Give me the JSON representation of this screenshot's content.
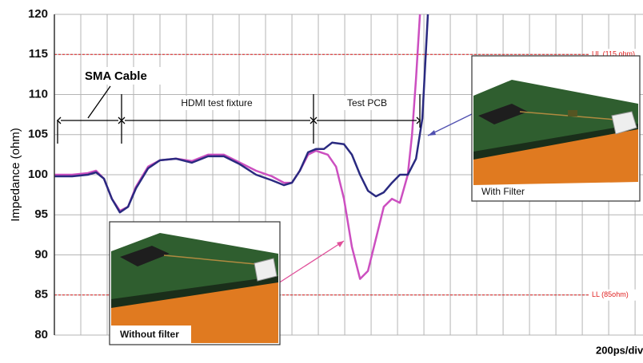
{
  "chart_data": {
    "type": "line",
    "y_label": "Impedance (ohm)",
    "x_label": "200ps/div",
    "xlim": [
      0,
      22.3
    ],
    "xticks": [
      0,
      1,
      2,
      3,
      4,
      5,
      6,
      7,
      8,
      9,
      10,
      11,
      12,
      13,
      14,
      15,
      16,
      17,
      18,
      19,
      20,
      21,
      22
    ],
    "ylim": [
      80,
      120
    ],
    "yticks": [
      80,
      85,
      90,
      95,
      100,
      105,
      110,
      115,
      120
    ],
    "grid": true,
    "limit_lines": [
      {
        "value": 115,
        "label": "UL (115 ohm)",
        "color": "#e02020"
      },
      {
        "value": 85,
        "label": "LL (85ohm)",
        "color": "#e02020"
      }
    ],
    "annotations": [
      "SMA Cable",
      "HDMI test fixture",
      "Test PCB"
    ],
    "series": [
      {
        "name": "Without filter",
        "color": "#cc4fc0",
        "x": [
          0,
          0.67,
          1.27,
          1.58,
          1.88,
          2.18,
          2.48,
          2.79,
          3.09,
          3.55,
          4,
          4.61,
          5.21,
          5.82,
          6.42,
          7.03,
          7.64,
          8.24,
          8.7,
          9,
          9.3,
          9.61,
          9.91,
          10.36,
          10.67,
          10.97,
          11.27,
          11.58,
          11.88,
          12.18,
          12.48,
          12.79,
          13.09,
          13.39,
          13.55,
          13.7,
          13.85
        ],
        "values": [
          100,
          100,
          100.2,
          100.5,
          99.5,
          97,
          95.5,
          96,
          98.5,
          101,
          101.8,
          102,
          101.7,
          102.5,
          102.5,
          101.5,
          100.5,
          99.8,
          99,
          99,
          100.5,
          102.5,
          103,
          102.5,
          101,
          97,
          91,
          87,
          88,
          92,
          96,
          97,
          96.5,
          100,
          105,
          112,
          120
        ]
      },
      {
        "name": "With Filter",
        "color": "#2a2a80",
        "x": [
          0,
          0.67,
          1.27,
          1.58,
          1.88,
          2.18,
          2.48,
          2.79,
          3.09,
          3.55,
          4,
          4.61,
          5.21,
          5.82,
          6.42,
          7.03,
          7.64,
          8.24,
          8.7,
          9,
          9.3,
          9.61,
          9.91,
          10.21,
          10.52,
          10.97,
          11.27,
          11.58,
          11.88,
          12.18,
          12.48,
          12.79,
          13.09,
          13.39,
          13.7,
          13.94,
          14.15
        ],
        "values": [
          99.8,
          99.8,
          100,
          100.3,
          99.5,
          97,
          95.3,
          96,
          98.3,
          100.8,
          101.8,
          102,
          101.5,
          102.3,
          102.3,
          101.3,
          100,
          99.3,
          98.7,
          99,
          100.5,
          102.8,
          103.2,
          103.2,
          104,
          103.8,
          102.5,
          100,
          98,
          97.3,
          97.8,
          99,
          100,
          100,
          102,
          107,
          120
        ]
      }
    ]
  }
}
